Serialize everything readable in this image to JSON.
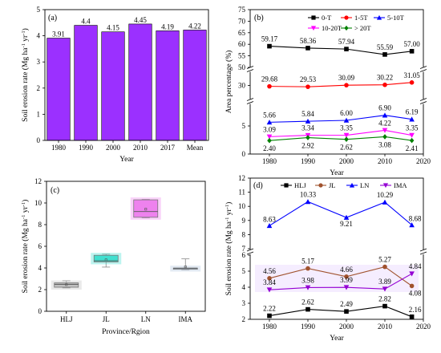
{
  "chart_data": [
    {
      "panel": "(a)",
      "type": "bar",
      "categories": [
        "1980",
        "1990",
        "2000",
        "2010",
        "2017",
        "Mean"
      ],
      "values": [
        3.91,
        4.4,
        4.15,
        4.45,
        4.19,
        4.22
      ],
      "value_labels": [
        "3.91",
        "4.4",
        "4.15",
        "4.45",
        "4.19",
        "4.22"
      ],
      "xlabel": "Year",
      "ylabel": "Soil erosion rate (Mg ha⁻¹ yr⁻¹)",
      "ylim": [
        0,
        5
      ],
      "yticks": [
        0,
        1,
        2,
        3,
        4,
        5
      ],
      "bar_color": "#9b30ff",
      "grid": false
    },
    {
      "panel": "(b)",
      "type": "line",
      "x": [
        1980,
        1990,
        2000,
        2010,
        2017
      ],
      "xticks": [
        1980,
        1990,
        2000,
        2010,
        2020
      ],
      "xlabel": "Year",
      "ylabel": "Area percentage (%)",
      "broken_axis": true,
      "ysegments": [
        {
          "range": [
            50,
            75
          ],
          "ticks": [
            50,
            55,
            60,
            65,
            70,
            75
          ]
        },
        {
          "range": [
            25,
            35
          ],
          "ticks": [
            30
          ]
        },
        {
          "range": [
            0,
            9
          ],
          "ticks": [
            0,
            5
          ]
        }
      ],
      "series": [
        {
          "name": "0-T",
          "color": "#000000",
          "marker": "square",
          "values": [
            59.17,
            58.36,
            57.94,
            55.59,
            57.0
          ],
          "labels": [
            "59.17",
            "58.36",
            "57.94",
            "55.59",
            "57.00"
          ]
        },
        {
          "name": "1-5T",
          "color": "#ff0000",
          "marker": "circle",
          "values": [
            29.68,
            29.53,
            30.09,
            30.22,
            31.05
          ],
          "labels": [
            "29.68",
            "29.53",
            "30.09",
            "30.22",
            "31.05"
          ]
        },
        {
          "name": "5-10T",
          "color": "#0000ff",
          "marker": "triangle-up",
          "values": [
            5.66,
            5.84,
            6.0,
            6.9,
            6.19
          ],
          "labels": [
            "5.66",
            "5.84",
            "6.00",
            "6.90",
            "6.19"
          ]
        },
        {
          "name": "10-20T",
          "color": "#ff00ff",
          "marker": "triangle-down",
          "values": [
            3.09,
            3.34,
            3.35,
            4.22,
            3.35
          ],
          "labels": [
            "3.09",
            "3.34",
            "3.35",
            "4.22",
            "3.35"
          ]
        },
        {
          "name": "> 20T",
          "color": "#008000",
          "marker": "diamond",
          "values": [
            2.4,
            2.92,
            2.62,
            3.08,
            2.41
          ],
          "labels": [
            "2.40",
            "2.92",
            "2.62",
            "3.08",
            "2.41"
          ]
        }
      ],
      "legend": "top-right"
    },
    {
      "panel": "(c)",
      "type": "box",
      "categories": [
        "HLJ",
        "JL",
        "LN",
        "IMA"
      ],
      "xlabel": "Province/Rgion",
      "ylabel": "Soil erosion rate (Mg ha⁻¹ yr⁻¹)",
      "ylim": [
        0,
        12
      ],
      "yticks": [
        0,
        2,
        4,
        6,
        8,
        10,
        12
      ],
      "boxes": [
        {
          "name": "HLJ",
          "min": 2.16,
          "q1": 2.22,
          "median": 2.49,
          "q3": 2.62,
          "max": 2.82,
          "mean": 2.46,
          "color": "#c0c0c0"
        },
        {
          "name": "JL",
          "min": 4.08,
          "q1": 4.56,
          "median": 4.66,
          "q3": 5.17,
          "max": 5.27,
          "mean": 4.75,
          "color": "#40e0d0"
        },
        {
          "name": "LN",
          "min": 8.63,
          "q1": 8.68,
          "median": 9.21,
          "q3": 10.29,
          "max": 10.33,
          "mean": 9.43,
          "color": "#ee82ee"
        },
        {
          "name": "IMA",
          "min": 3.84,
          "q1": 3.89,
          "median": 3.98,
          "q3": 3.99,
          "max": 4.84,
          "mean": 4.11,
          "color": "#b0c4de"
        }
      ],
      "grid": false
    },
    {
      "panel": "(d)",
      "type": "line",
      "x": [
        1980,
        1990,
        2000,
        2010,
        2017
      ],
      "xticks": [
        1980,
        1990,
        2000,
        2010,
        2020
      ],
      "xlabel": "Year",
      "ylabel": "Soil erosion rate (Mg ha⁻¹ yr⁻¹)",
      "broken_axis": true,
      "ysegments": [
        {
          "range": [
            7,
            12
          ],
          "ticks": [
            7,
            8,
            9,
            10,
            11,
            12
          ]
        },
        {
          "range": [
            2,
            6
          ],
          "ticks": [
            2,
            3,
            4,
            5,
            6
          ]
        }
      ],
      "series": [
        {
          "name": "HLJ",
          "color": "#000000",
          "marker": "square",
          "values": [
            2.22,
            2.62,
            2.49,
            2.82,
            2.16
          ],
          "labels": [
            "2.22",
            "2.62",
            "2.49",
            "2.82",
            "2.16"
          ]
        },
        {
          "name": "JL",
          "color": "#a0522d",
          "marker": "circle",
          "values": [
            4.56,
            5.17,
            4.66,
            5.27,
            4.08
          ],
          "labels": [
            "4.56",
            "5.17",
            "4.66",
            "5.27",
            "4.08"
          ]
        },
        {
          "name": "LN",
          "color": "#0000ff",
          "marker": "triangle-up",
          "values": [
            8.63,
            10.33,
            9.21,
            10.29,
            8.68
          ],
          "labels": [
            "8.63",
            "10.33",
            "9.21",
            "10.29",
            "8.68"
          ]
        },
        {
          "name": "IMA",
          "color": "#9400d3",
          "marker": "triangle-down",
          "values": [
            3.84,
            3.98,
            3.99,
            3.89,
            4.84
          ],
          "labels": [
            "3.84",
            "3.98",
            "3.99",
            "3.89",
            "4.84"
          ]
        }
      ],
      "legend": "top"
    }
  ]
}
